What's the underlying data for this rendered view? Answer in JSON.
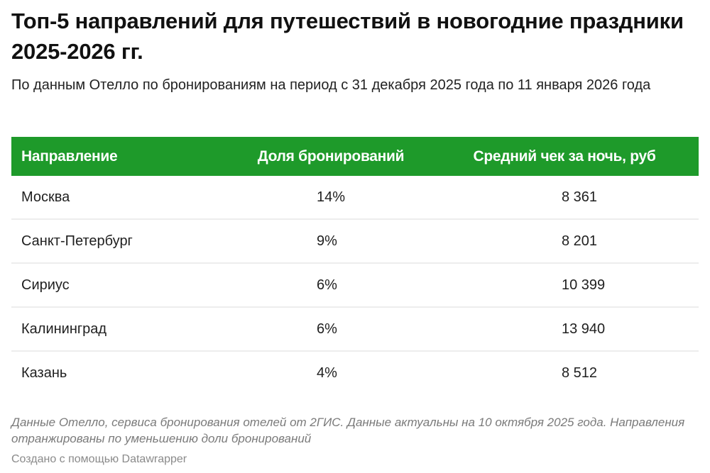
{
  "header": {
    "title": "Топ-5 направлений для путешествий в новогодние праздники 2025-2026 гг.",
    "subtitle": "По данным Отелло по бронированиям на период с 31 декабря 2025 года по 11 января 2026 года"
  },
  "table": {
    "columns": [
      "Направление",
      "Доля бронирований",
      "Средний чек за ночь, руб"
    ],
    "rows": [
      {
        "destination": "Москва",
        "share": "14%",
        "avg_check": "8 361"
      },
      {
        "destination": "Санкт-Петербург",
        "share": "9%",
        "avg_check": "8 201"
      },
      {
        "destination": "Сириус",
        "share": "6%",
        "avg_check": "10 399"
      },
      {
        "destination": "Калининград",
        "share": "6%",
        "avg_check": "13 940"
      },
      {
        "destination": "Казань",
        "share": "4%",
        "avg_check": "8 512"
      }
    ]
  },
  "footer": {
    "notes": "Данные Отелло, сервиса бронирования отелей от 2ГИС. Данные актуальны на 10 октября 2025 года. Направления отранжированы по уменьшению доли бронирований",
    "credit": "Создано с помощью Datawrapper"
  },
  "colors": {
    "header_bg": "#1e9a2a",
    "header_text": "#ffffff",
    "row_divider": "#ededed",
    "notes_text": "#7a7a7a"
  },
  "chart_data": {
    "type": "table",
    "title": "Топ-5 направлений для путешествий в новогодние праздники 2025-2026 гг.",
    "subtitle": "По данным Отелло по бронированиям на период с 31 декабря 2025 года по 11 января 2026 года",
    "columns": [
      "Направление",
      "Доля бронирований",
      "Средний чек за ночь, руб"
    ],
    "categories": [
      "Москва",
      "Санкт-Петербург",
      "Сириус",
      "Калининград",
      "Казань"
    ],
    "series": [
      {
        "name": "Доля бронирований",
        "unit": "%",
        "values": [
          14,
          9,
          6,
          6,
          4
        ]
      },
      {
        "name": "Средний чек за ночь, руб",
        "unit": "руб",
        "values": [
          8361,
          8201,
          10399,
          13940,
          8512
        ]
      }
    ],
    "notes": "Данные Отелло, сервиса бронирования отелей от 2ГИС. Данные актуальны на 10 октября 2025 года. Направления отранжированы по уменьшению доли бронирований",
    "source_credit": "Создано с помощью Datawrapper"
  }
}
